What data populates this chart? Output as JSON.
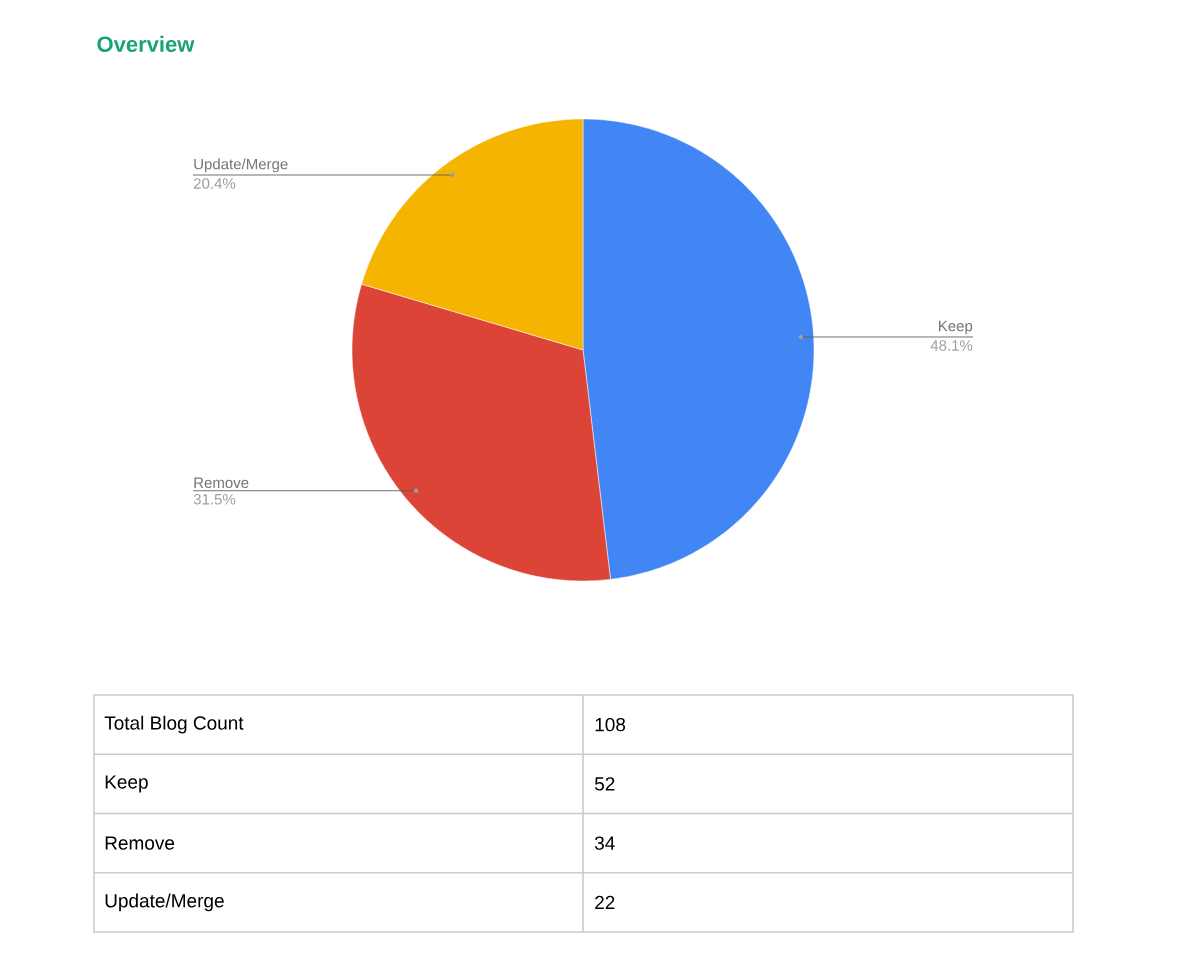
{
  "chart_data": [
    {
      "type": "pie",
      "title": "Overview",
      "categories": [
        "Keep",
        "Remove",
        "Update/Merge"
      ],
      "values": [
        48.1,
        31.5,
        20.4
      ],
      "colors": [
        "#4285f4",
        "#db4437",
        "#f4b400"
      ],
      "value_labels": [
        "48.1%",
        "31.5%",
        "20.4%"
      ]
    },
    {
      "type": "other",
      "categories": [
        "Total Blog Count",
        "Keep",
        "Remove",
        "Update/Merge"
      ],
      "values": [
        108,
        52,
        34,
        22
      ],
      "data_labels": true
    }
  ]
}
